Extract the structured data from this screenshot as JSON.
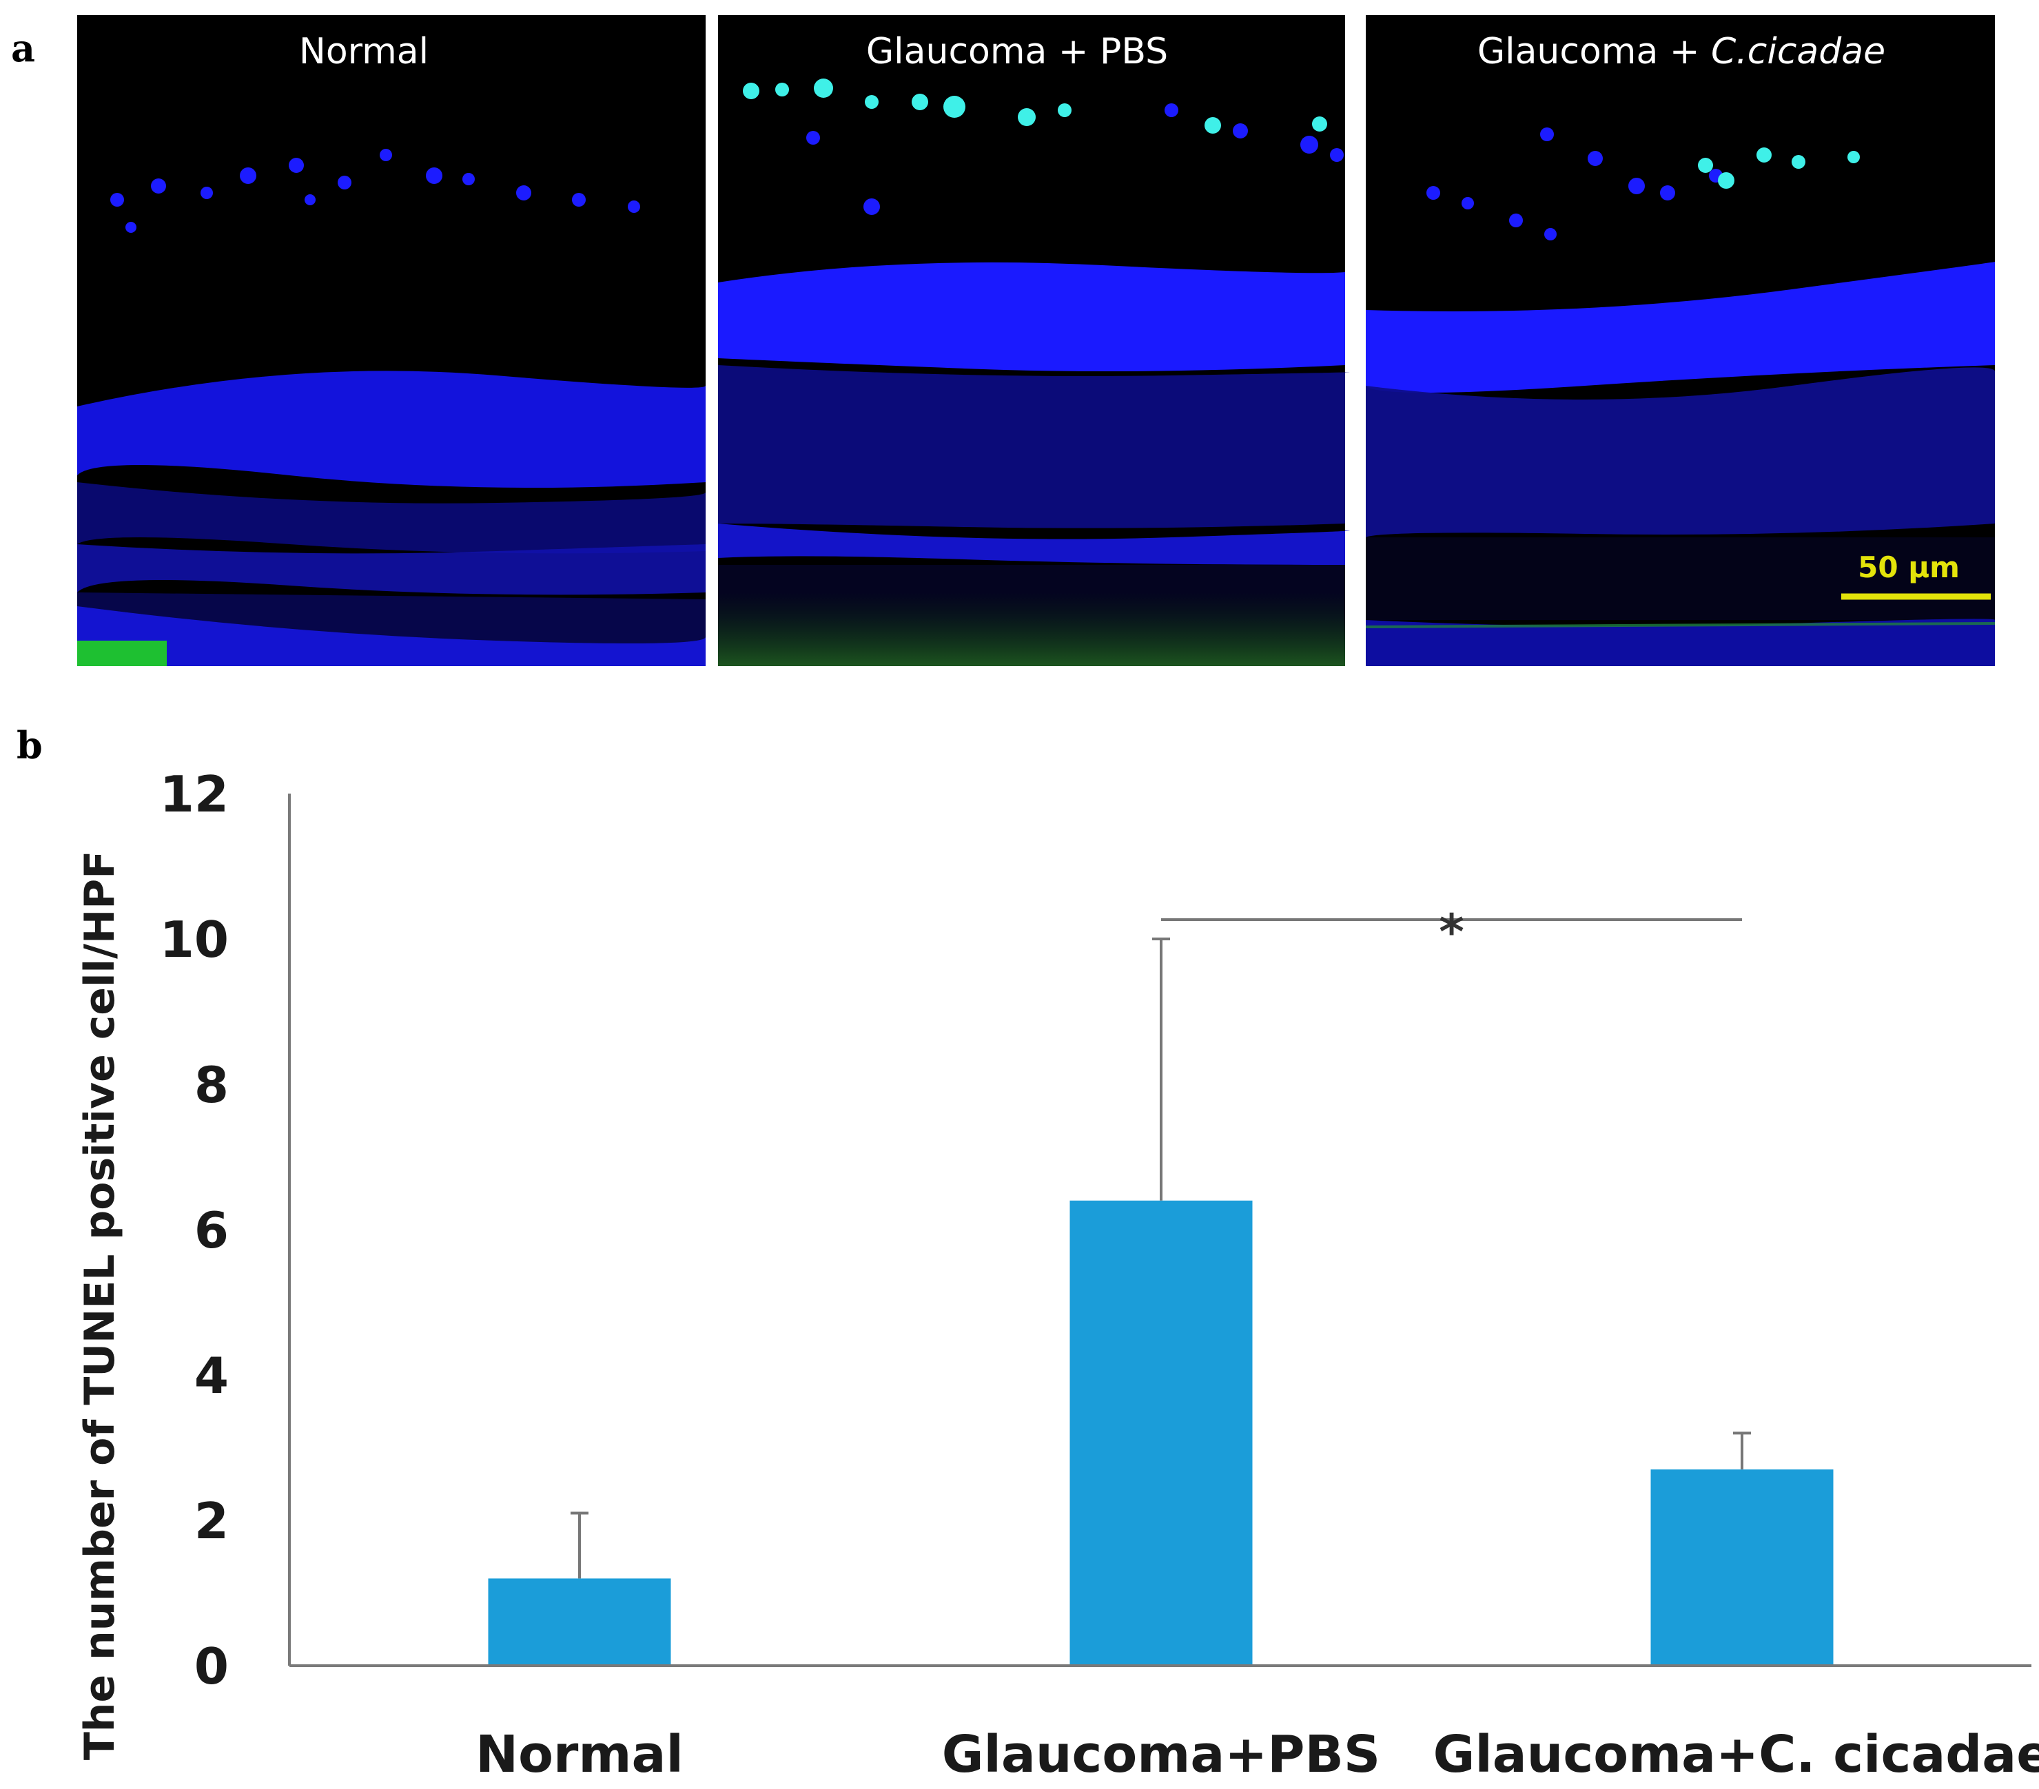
{
  "panels": {
    "a": "a",
    "b": "b"
  },
  "micrographs": {
    "titles": [
      "Normal",
      "Glaucoma + PBS",
      "Glaucoma + "
    ],
    "title_italic_suffix": "C.cicadae",
    "scale_bar_label": "50 μm",
    "colors": {
      "background": "#000000",
      "dapi": "#1a1aff",
      "tunel": "#3ff0e8",
      "scale_bar": "#e3e30a"
    }
  },
  "chart_data": {
    "type": "bar",
    "categories": [
      "Normal",
      "Glaucoma+PBS",
      "Glaucoma+C. cicadae"
    ],
    "values": [
      1.2,
      6.4,
      2.7
    ],
    "error_upper": [
      2.1,
      10.0,
      3.2
    ],
    "ylabel": "The number of TUNEL positive cell/HPF",
    "xlabel": "",
    "ylim": [
      0,
      12
    ],
    "yticks": [
      0,
      2,
      4,
      6,
      8,
      10,
      12
    ],
    "significance": {
      "from": 1,
      "to": 2,
      "label": "*"
    },
    "bar_color": "#1b9dd9",
    "error_color": "#777777",
    "grid": false
  }
}
